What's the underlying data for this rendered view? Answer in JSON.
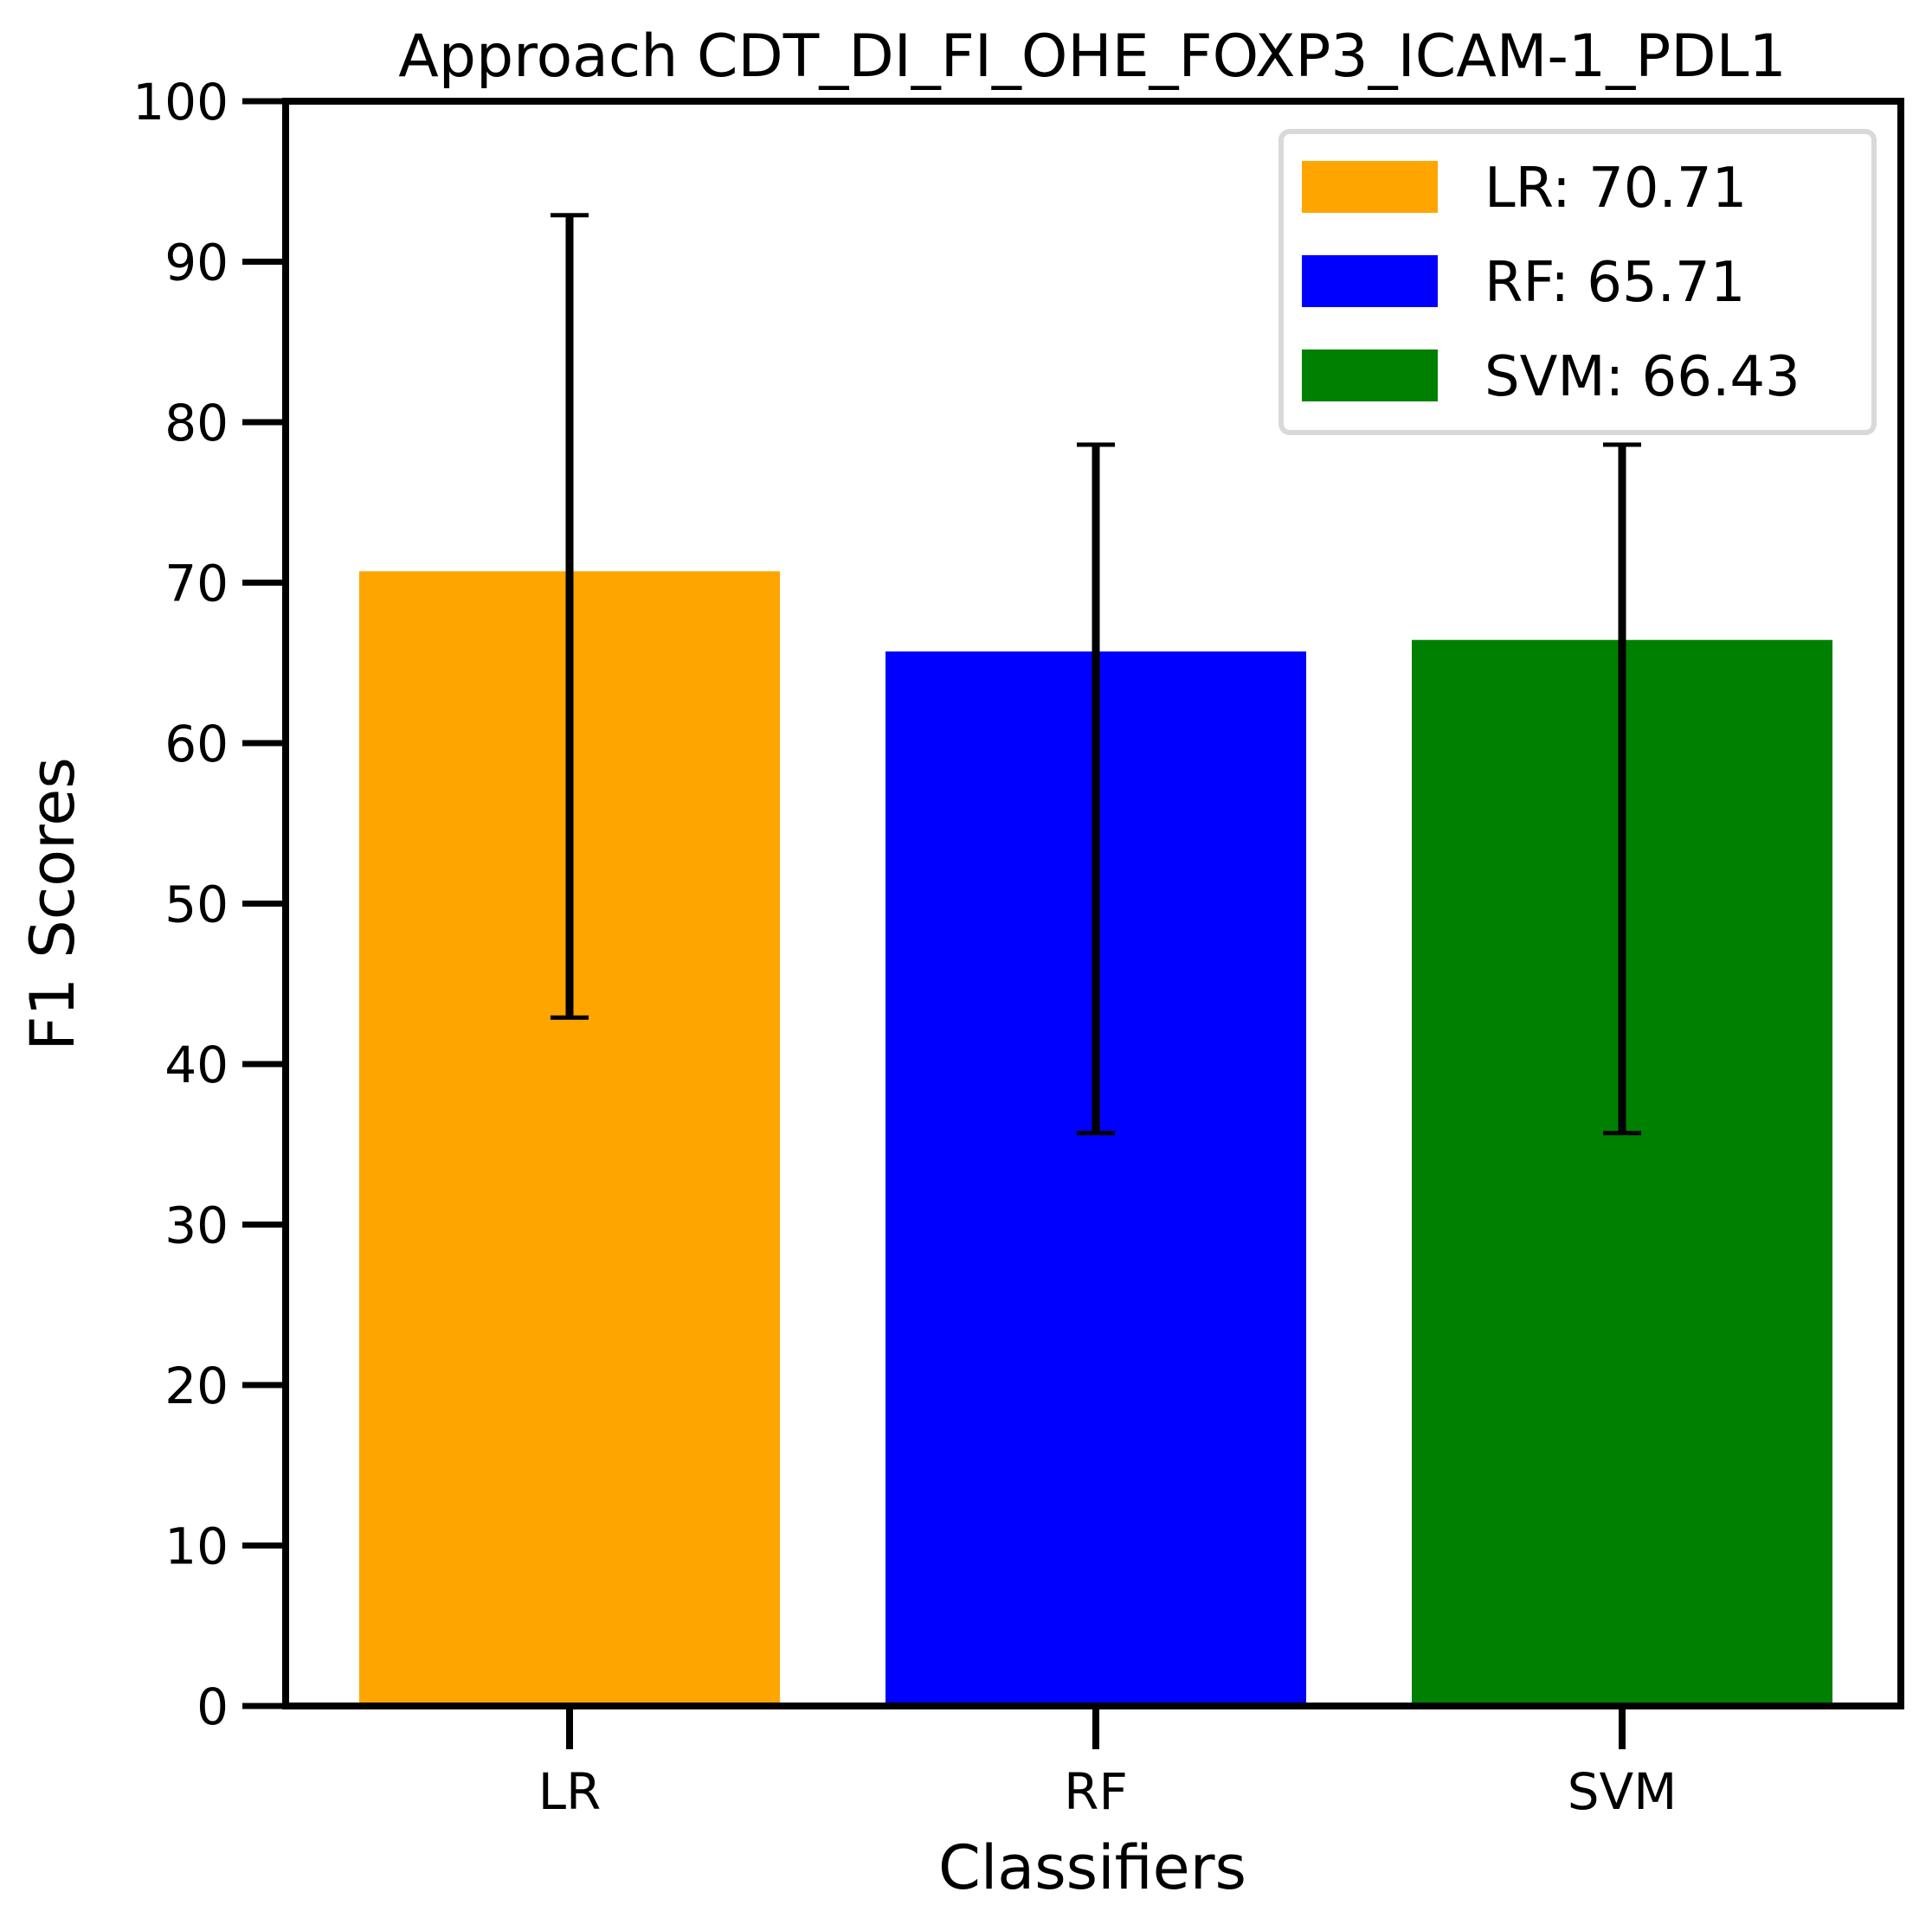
{
  "chart_data": {
    "type": "bar",
    "title": "Approach CDT_DI_FI_OHE_FOXP3_ICAM-1_PDL1",
    "xlabel": "Classifiers",
    "ylabel": "F1 Scores",
    "categories": [
      "LR",
      "RF",
      "SVM"
    ],
    "values": [
      70.71,
      65.71,
      66.43
    ],
    "errors": [
      {
        "low": 42.9,
        "high": 92.9
      },
      {
        "low": 35.7,
        "high": 78.6
      },
      {
        "low": 35.7,
        "high": 78.6
      }
    ],
    "colors": [
      "#FFA500",
      "#0000FF",
      "#008000"
    ],
    "ylim": [
      0,
      100
    ],
    "yticks": [
      "0",
      "10",
      "20",
      "30",
      "40",
      "50",
      "60",
      "70",
      "80",
      "90",
      "100"
    ],
    "grid": false,
    "legend": {
      "position": "top-right",
      "entries": [
        "LR: 70.71",
        "RF: 65.71",
        "SVM: 66.43"
      ]
    }
  }
}
